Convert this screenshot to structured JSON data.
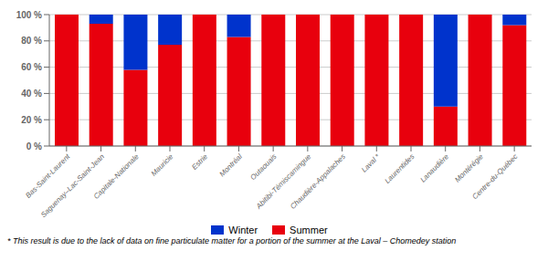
{
  "chart_data": {
    "type": "bar",
    "stacked": true,
    "categories": [
      "Bas-Saint-Laurent",
      "Saguenay–Lac-Saint-Jean",
      "Capitale-Nationale",
      "Mauricie",
      "Estrie",
      "Montréal",
      "Outaouais",
      "Abitibi-Témiscamingue",
      "Chaudière-Appalaches",
      "Laval *",
      "Laurentides",
      "Lanaudière",
      "Montérégie",
      "Centre-du-Québec"
    ],
    "series": [
      {
        "name": "Summer",
        "color": "#e8000d",
        "values": [
          100,
          93,
          58,
          77,
          100,
          83,
          100,
          100,
          100,
          100,
          100,
          30,
          100,
          92
        ]
      },
      {
        "name": "Winter",
        "color": "#0033cc",
        "values": [
          0,
          7,
          42,
          23,
          0,
          17,
          0,
          0,
          0,
          0,
          0,
          70,
          0,
          8
        ]
      }
    ],
    "ylim": [
      0,
      100
    ],
    "yticks": [
      {
        "value": 0,
        "label": "0 %"
      },
      {
        "value": 20,
        "label": "20 %"
      },
      {
        "value": 40,
        "label": "40 %"
      },
      {
        "value": 60,
        "label": "60 %"
      },
      {
        "value": 80,
        "label": "80 %"
      },
      {
        "value": 100,
        "label": "100 %"
      }
    ],
    "grid": true,
    "legend": "bottom",
    "annotations": [
      "* This result is due to the lack of data on fine particulate matter for a portion of the summer at the Laval – Chomedey station"
    ]
  }
}
